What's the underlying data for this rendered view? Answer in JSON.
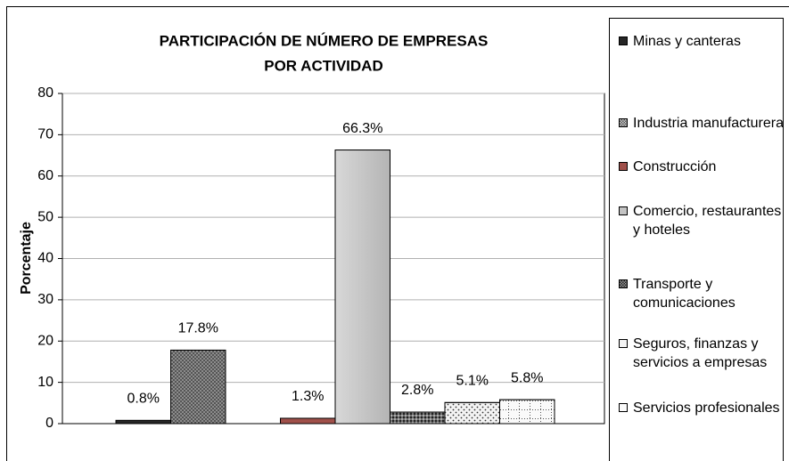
{
  "chart_data": {
    "type": "bar",
    "title": [
      "PARTICIPACIÓN DE NÚMERO DE EMPRESAS",
      "POR ACTIVIDAD"
    ],
    "y_label": "Porcentaje",
    "ylim": [
      0,
      80
    ],
    "yticks": [
      0,
      10,
      20,
      30,
      40,
      50,
      60,
      70,
      80
    ],
    "grid": true,
    "series": [
      {
        "name": "Minas y canteras",
        "color": "#262626",
        "values": [
          0.8
        ],
        "value_labels": [
          "0.8%"
        ]
      },
      {
        "name": "Industria manufacturera",
        "color": "#8c8c8c",
        "values": [
          17.8
        ],
        "value_labels": [
          "17.8%"
        ]
      },
      {
        "name": "Construcción",
        "color": "#a0504a",
        "values": [
          1.3
        ],
        "value_labels": [
          "1.3%"
        ]
      },
      {
        "name": "Comercio, restaurantes y hoteles",
        "color": "#c4c4c4",
        "values": [
          66.3
        ],
        "value_labels": [
          "66.3%"
        ]
      },
      {
        "name": "Transporte y comunicaciones",
        "color": "#6e6e6e",
        "values": [
          2.8
        ],
        "value_labels": [
          "2.8%"
        ]
      },
      {
        "name": "Seguros, finanzas y servicios a empresas",
        "color": "#f4f4f4",
        "values": [
          5.1
        ],
        "value_labels": [
          "5.1%"
        ]
      },
      {
        "name": "Servicios profesionales",
        "color": "#fafafa",
        "values": [
          5.8
        ],
        "value_labels": [
          "5.8%"
        ]
      }
    ],
    "legend": "right"
  }
}
